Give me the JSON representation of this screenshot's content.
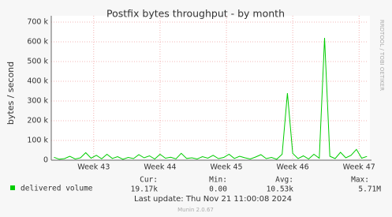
{
  "chart_data": {
    "type": "line",
    "title": "Postfix bytes throughput - by month",
    "y_label": "bytes / second",
    "side_note": "RRDTOOL / TOBI OETIKER",
    "x": [
      42.4,
      42.48,
      42.56,
      42.64,
      42.72,
      42.8,
      42.88,
      42.96,
      43.04,
      43.12,
      43.2,
      43.28,
      43.36,
      43.44,
      43.52,
      43.6,
      43.68,
      43.76,
      43.84,
      43.92,
      44.0,
      44.08,
      44.16,
      44.24,
      44.32,
      44.4,
      44.48,
      44.56,
      44.64,
      44.72,
      44.8,
      44.88,
      44.96,
      45.04,
      45.12,
      45.2,
      45.28,
      45.36,
      45.44,
      45.52,
      45.6,
      45.68,
      45.76,
      45.84,
      45.92,
      46.0,
      46.08,
      46.16,
      46.24,
      46.32,
      46.4,
      46.48,
      46.56,
      46.64,
      46.72,
      46.8,
      46.88,
      46.96,
      47.04,
      47.12
    ],
    "series": [
      {
        "name": "delivered volume",
        "color": "#00cc00",
        "values": [
          15000,
          5000,
          8000,
          20000,
          6000,
          12000,
          38000,
          10000,
          25000,
          7000,
          30000,
          9000,
          18000,
          5000,
          14000,
          8000,
          28000,
          12000,
          22000,
          6000,
          30000,
          10000,
          15000,
          7000,
          35000,
          9000,
          12000,
          6000,
          18000,
          10000,
          25000,
          8000,
          14000,
          30000,
          9000,
          20000,
          12000,
          6000,
          16000,
          28000,
          8000,
          14000,
          5000,
          30000,
          340000,
          35000,
          8000,
          22000,
          6000,
          30000,
          10000,
          620000,
          20000,
          8000,
          40000,
          12000,
          25000,
          55000,
          10000,
          19170
        ]
      }
    ],
    "xlim": [
      42.36,
      47.14
    ],
    "xticks": [
      {
        "value": 43,
        "label": "Week 43"
      },
      {
        "value": 44,
        "label": "Week 44"
      },
      {
        "value": 45,
        "label": "Week 45"
      },
      {
        "value": 46,
        "label": "Week 46"
      },
      {
        "value": 47,
        "label": "Week 47"
      }
    ],
    "ylim": [
      0,
      700000
    ],
    "yticks": [
      0,
      {
        "value": 100000,
        "label": "100 k"
      },
      {
        "value": 200000,
        "label": "200 k"
      },
      {
        "value": 300000,
        "label": "300 k"
      },
      {
        "value": 400000,
        "label": "400 k"
      },
      {
        "value": 500000,
        "label": "500 k"
      },
      {
        "value": 600000,
        "label": "600 k"
      },
      {
        "value": 700000,
        "label": "700 k"
      }
    ],
    "grid": true,
    "stats": {
      "headers": [
        "Cur:",
        "Min:",
        "Avg:",
        "Max:"
      ],
      "values": [
        "19.17k",
        "0.00",
        "10.53k",
        "5.71M"
      ]
    },
    "last_update": "Last update: Thu Nov 21 11:00:08 2024",
    "footer": "Munin 2.0.67"
  }
}
